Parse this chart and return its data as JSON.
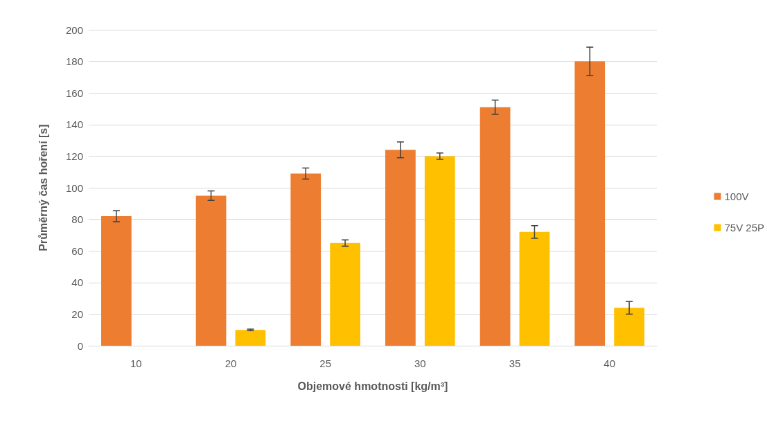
{
  "chart_data": {
    "type": "bar",
    "xlabel": "Objemové hmotnosti [kg/m³]",
    "ylabel": "Průměrný čas hoření [s]",
    "categories": [
      "10",
      "20",
      "25",
      "30",
      "35",
      "40"
    ],
    "series": [
      {
        "name": "100V",
        "color": "#ed7d31",
        "values": [
          82,
          95,
          109,
          124,
          151,
          180
        ],
        "errors": [
          3.5,
          3,
          3.5,
          5,
          4.5,
          9
        ]
      },
      {
        "name": "75V 25P",
        "color": "#ffc000",
        "values": [
          0,
          10,
          65,
          120,
          72,
          24
        ],
        "errors": [
          null,
          0.5,
          2,
          2,
          4,
          4
        ]
      }
    ],
    "ylim": [
      0,
      200
    ],
    "yticks": [
      0,
      20,
      40,
      60,
      80,
      100,
      120,
      140,
      160,
      180,
      200
    ],
    "grid": "y",
    "legend": "right"
  }
}
